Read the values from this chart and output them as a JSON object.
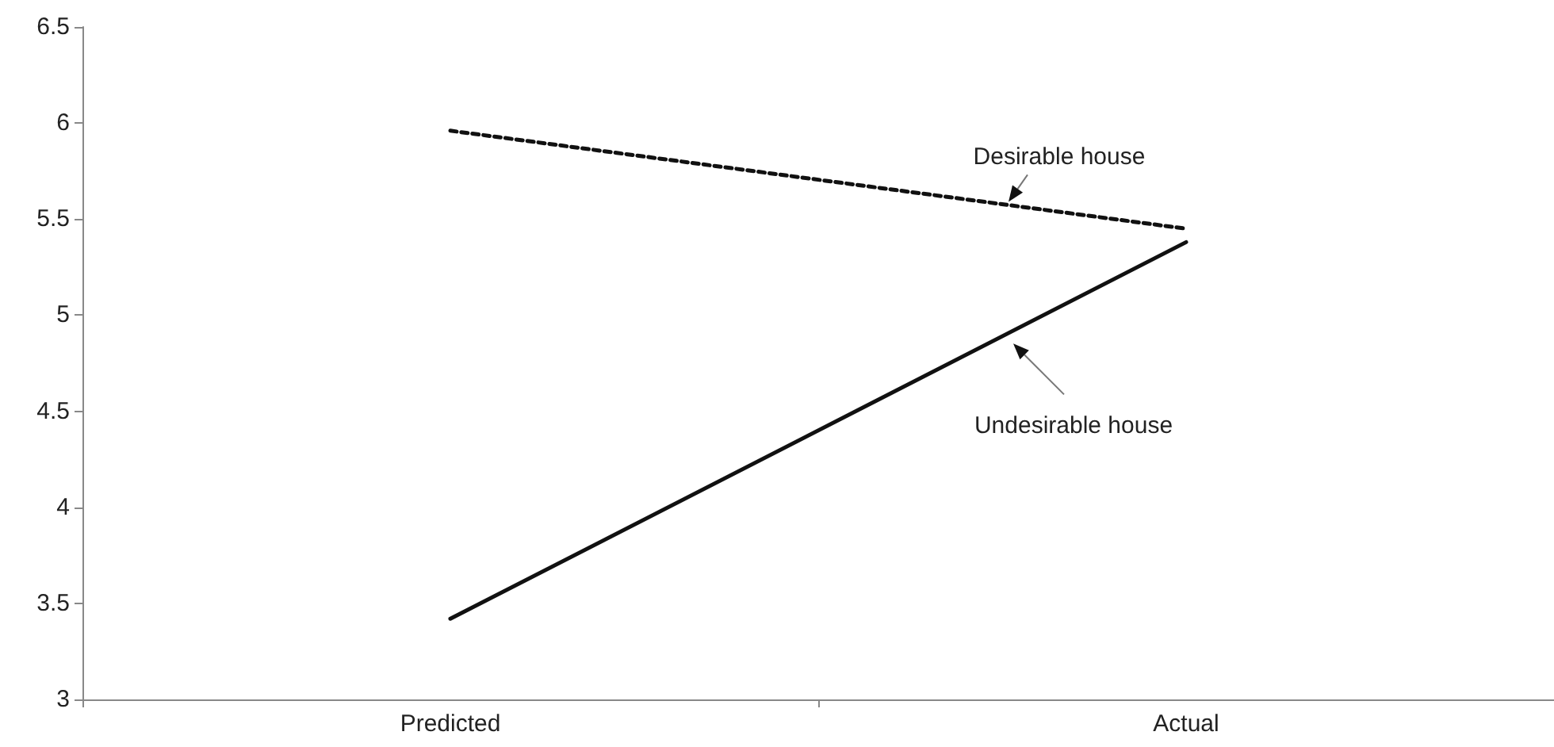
{
  "chart_data": {
    "type": "line",
    "categories": [
      "Predicted",
      "Actual"
    ],
    "series": [
      {
        "name": "Desirable house",
        "color": "#111111",
        "line_style": "dotted",
        "values": [
          5.96,
          5.45
        ]
      },
      {
        "name": "Undesirable house",
        "color": "#111111",
        "line_style": "solid",
        "values": [
          3.42,
          5.38
        ]
      }
    ],
    "ylim": [
      3,
      6.5
    ],
    "yticks": [
      3,
      3.5,
      4,
      4.5,
      5,
      5.5,
      6,
      6.5
    ],
    "grid": false,
    "legend": false,
    "marker": "none"
  }
}
